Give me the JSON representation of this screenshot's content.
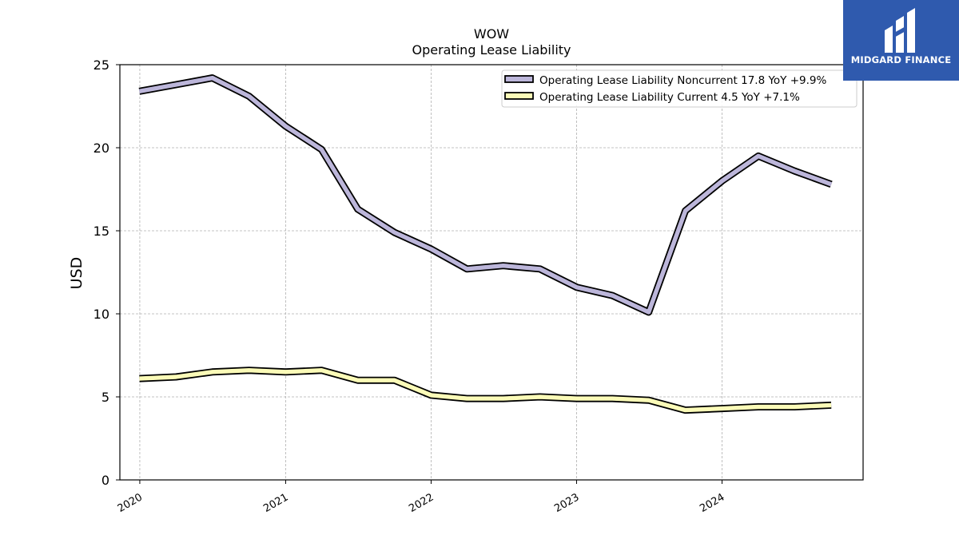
{
  "brand": {
    "name": "MIDGARD FINANCE",
    "color": "#2f5aae"
  },
  "chart_data": {
    "type": "line",
    "title": "WOW",
    "subtitle": "Operating Lease Liability",
    "ylabel": "USD",
    "xlabel": "",
    "ylim": [
      0,
      25
    ],
    "yticks": [
      0,
      5,
      10,
      15,
      20,
      25
    ],
    "xlim": [
      "2019-11-12",
      "2024-12-20"
    ],
    "xticks": [
      {
        "date": "2020-01-01",
        "label": "2020"
      },
      {
        "date": "2021-01-01",
        "label": "2021"
      },
      {
        "date": "2022-01-01",
        "label": "2022"
      },
      {
        "date": "2023-01-01",
        "label": "2023"
      },
      {
        "date": "2024-01-01",
        "label": "2024"
      }
    ],
    "grid": true,
    "legend_position": "top-right",
    "x": [
      "2019-12-31",
      "2020-04-01",
      "2020-07-01",
      "2020-10-01",
      "2021-01-01",
      "2021-04-01",
      "2021-07-01",
      "2021-10-01",
      "2022-01-01",
      "2022-04-01",
      "2022-07-01",
      "2022-10-01",
      "2023-01-01",
      "2023-04-01",
      "2023-07-01",
      "2023-10-01",
      "2024-01-01",
      "2024-04-01",
      "2024-07-01",
      "2024-10-01"
    ],
    "series": [
      {
        "name": "Operating Lease Liability Noncurrent",
        "legend": "Operating Lease Liability Noncurrent  17.8 YoY +9.9%",
        "color": "#bcb6da",
        "values": [
          23.4,
          23.8,
          24.2,
          23.1,
          21.3,
          19.9,
          16.3,
          14.9,
          13.9,
          12.7,
          12.9,
          12.7,
          11.6,
          11.1,
          10.1,
          16.2,
          18.0,
          19.5,
          18.6,
          17.8
        ]
      },
      {
        "name": "Operating Lease Liability Current",
        "legend": "Operating Lease Liability Current  4.5 YoY +7.1%",
        "color": "#fbfbb8",
        "values": [
          6.1,
          6.2,
          6.5,
          6.6,
          6.5,
          6.6,
          6.0,
          6.0,
          5.1,
          4.9,
          4.9,
          5.0,
          4.9,
          4.9,
          4.8,
          4.2,
          4.3,
          4.4,
          4.4,
          4.5
        ]
      }
    ]
  }
}
